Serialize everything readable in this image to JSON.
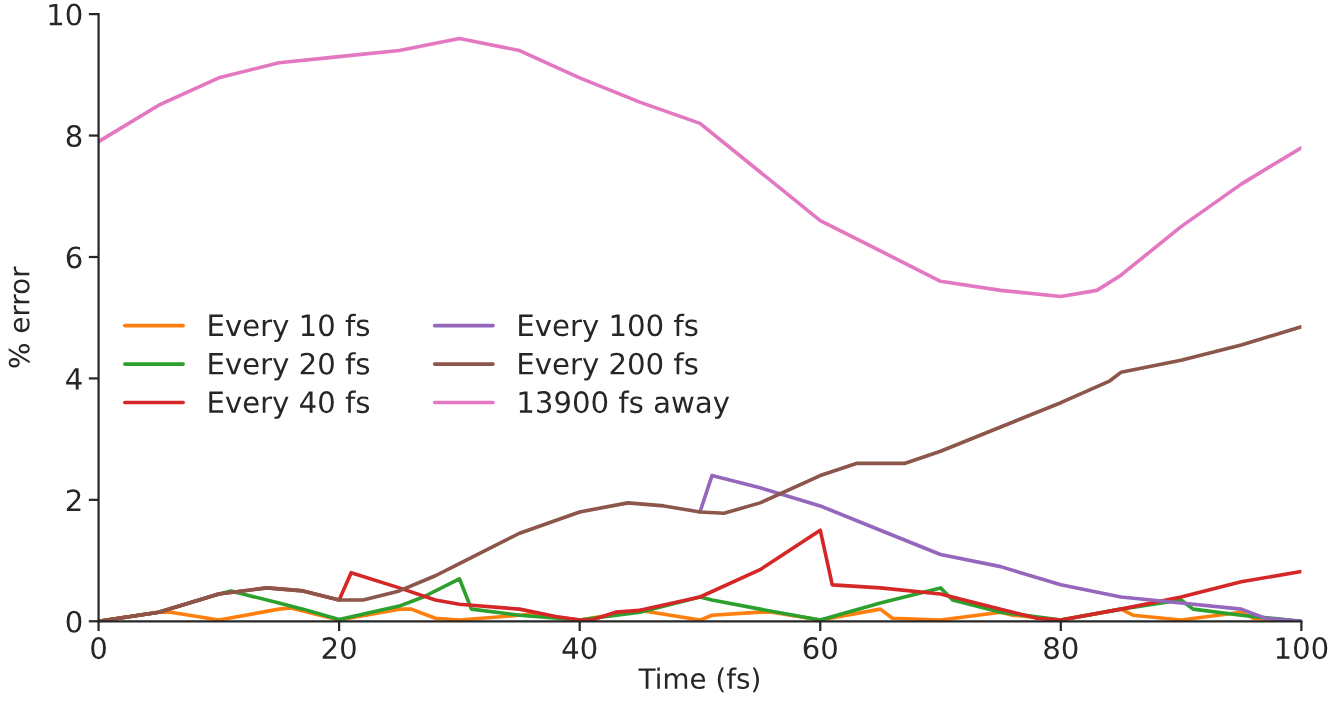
{
  "chart_data": {
    "type": "line",
    "xlabel": "Time (fs)",
    "ylabel": "% error",
    "xlim": [
      0,
      100
    ],
    "ylim": [
      0,
      10
    ],
    "xticks": [
      0,
      20,
      40,
      60,
      80,
      100
    ],
    "yticks": [
      0,
      2,
      4,
      6,
      8,
      10
    ],
    "grid": false,
    "legend": "left",
    "marker": "none",
    "line_style": "solid",
    "series": [
      {
        "name": "Every 10 fs",
        "color": "#ff7f0e",
        "x": [
          0,
          5,
          6,
          10,
          15,
          16,
          20,
          25,
          26,
          28,
          30,
          35,
          36,
          40,
          45,
          46,
          50,
          51,
          55,
          56,
          60,
          65,
          66,
          70,
          75,
          76,
          80,
          85,
          86,
          90,
          95,
          96,
          100
        ],
        "values": [
          0,
          0.15,
          0.15,
          0.02,
          0.2,
          0.22,
          0.02,
          0.2,
          0.2,
          0.05,
          0.02,
          0.1,
          0.12,
          0.02,
          0.18,
          0.15,
          0.02,
          0.1,
          0.15,
          0.15,
          0.02,
          0.2,
          0.05,
          0.02,
          0.15,
          0.1,
          0.02,
          0.2,
          0.1,
          0.02,
          0.15,
          0.05,
          0
        ]
      },
      {
        "name": "Every 20 fs",
        "color": "#2ca02c",
        "x": [
          0,
          5,
          10,
          11,
          15,
          17,
          20,
          25,
          27,
          30,
          31,
          35,
          40,
          45,
          50,
          51,
          55,
          60,
          65,
          70,
          71,
          75,
          80,
          85,
          90,
          91,
          95,
          100
        ],
        "values": [
          0,
          0.15,
          0.45,
          0.5,
          0.3,
          0.2,
          0.03,
          0.25,
          0.4,
          0.7,
          0.2,
          0.1,
          0.02,
          0.15,
          0.4,
          0.35,
          0.2,
          0.02,
          0.3,
          0.55,
          0.35,
          0.15,
          0.02,
          0.2,
          0.35,
          0.2,
          0.1,
          0
        ]
      },
      {
        "name": "Every 40 fs",
        "color": "#d62728",
        "x": [
          0,
          5,
          10,
          14,
          17,
          20,
          21,
          25,
          28,
          30,
          35,
          38,
          40,
          41,
          43,
          45,
          50,
          55,
          60,
          61,
          65,
          70,
          75,
          78,
          80,
          85,
          90,
          95,
          100
        ],
        "values": [
          0,
          0.15,
          0.45,
          0.55,
          0.5,
          0.35,
          0.8,
          0.55,
          0.35,
          0.28,
          0.2,
          0.08,
          0.02,
          0.02,
          0.15,
          0.18,
          0.4,
          0.85,
          1.5,
          0.6,
          0.55,
          0.45,
          0.2,
          0.05,
          0.02,
          0.2,
          0.4,
          0.65,
          0.82
        ]
      },
      {
        "name": "Every 100 fs",
        "color": "#9467bd",
        "x": [
          50,
          51,
          55,
          60,
          65,
          70,
          75,
          80,
          85,
          90,
          95,
          97,
          100
        ],
        "values": [
          1.8,
          2.4,
          2.2,
          1.9,
          1.5,
          1.1,
          0.9,
          0.6,
          0.4,
          0.3,
          0.2,
          0.05,
          0
        ]
      },
      {
        "name": "Every 200 fs",
        "color": "#8c564b",
        "x": [
          0,
          5,
          10,
          14,
          17,
          20,
          22,
          25,
          28,
          30,
          35,
          40,
          44,
          47,
          50,
          52,
          55,
          60,
          63,
          67,
          70,
          75,
          80,
          84,
          85,
          90,
          95,
          100
        ],
        "values": [
          0,
          0.15,
          0.45,
          0.55,
          0.5,
          0.35,
          0.35,
          0.5,
          0.75,
          0.95,
          1.45,
          1.8,
          1.95,
          1.9,
          1.8,
          1.78,
          1.95,
          2.4,
          2.6,
          2.6,
          2.8,
          3.2,
          3.6,
          3.95,
          4.1,
          4.3,
          4.55,
          4.85
        ]
      },
      {
        "name": "13900 fs away",
        "color": "#e377c2",
        "x": [
          0,
          5,
          10,
          15,
          20,
          25,
          30,
          35,
          40,
          45,
          50,
          55,
          60,
          65,
          70,
          75,
          80,
          83,
          85,
          90,
          95,
          100
        ],
        "values": [
          7.9,
          8.5,
          8.95,
          9.2,
          9.3,
          9.4,
          9.6,
          9.4,
          8.95,
          8.55,
          8.2,
          7.4,
          6.6,
          6.1,
          5.6,
          5.45,
          5.35,
          5.45,
          5.7,
          6.5,
          7.2,
          7.8
        ]
      }
    ]
  }
}
